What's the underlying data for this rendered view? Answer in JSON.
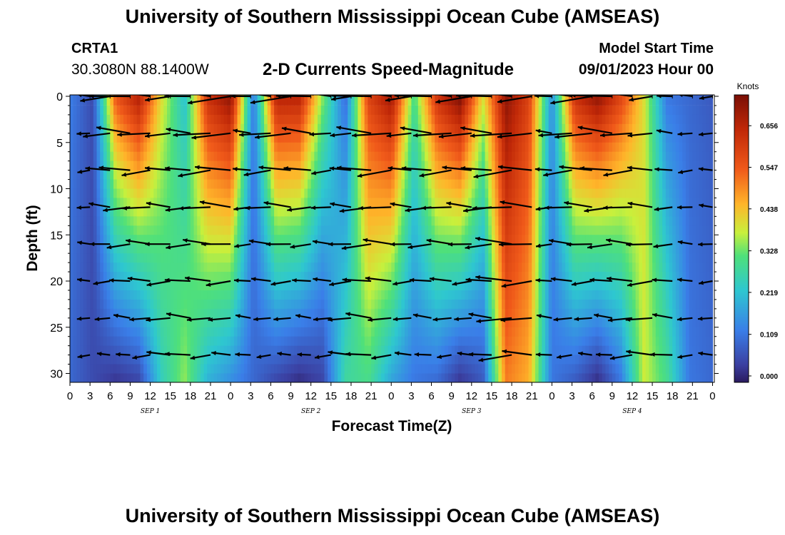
{
  "page": {
    "title_top": "University of Southern Mississippi Ocean Cube (AMSEAS)",
    "title_bottom": "University of Southern Mississippi Ocean Cube (AMSEAS)",
    "station": "CRTA1",
    "latlon": "30.3080N  88.1400W",
    "subtitle": "2-D Currents Speed-Magnitude",
    "model_start_label": "Model Start Time",
    "model_start_value": "09/01/2023 Hour 00"
  },
  "chart_data": {
    "type": "heatmap",
    "title": "2-D Currents Speed-Magnitude",
    "xlabel": "Forecast Time(Z)",
    "ylabel": "Depth (ft)",
    "x_range_hours": [
      0,
      96
    ],
    "ylim": [
      0,
      31
    ],
    "x_tick_labels": [
      "0",
      "3",
      "6",
      "9",
      "12",
      "15",
      "18",
      "21",
      "0",
      "3",
      "6",
      "9",
      "12",
      "15",
      "18",
      "21",
      "0",
      "3",
      "6",
      "9",
      "12",
      "15",
      "18",
      "21",
      "0",
      "3",
      "6",
      "9",
      "12",
      "15",
      "18",
      "21",
      "0"
    ],
    "day_labels": [
      "SEP 1",
      "SEP 2",
      "SEP 3",
      "SEP 4"
    ],
    "y_ticks": [
      0,
      5,
      10,
      15,
      20,
      25,
      30
    ],
    "colorbar": {
      "unit": "Knots",
      "ticks": [
        "0.656",
        "0.547",
        "0.438",
        "0.328",
        "0.219",
        "0.109",
        "0.000"
      ],
      "range": [
        0,
        0.72
      ]
    },
    "time_profile_surface": [
      0.13,
      0.06,
      0.55,
      0.66,
      0.4,
      0.22,
      0.62,
      0.7,
      0.12,
      0.65,
      0.65,
      0.35,
      0.1,
      0.58,
      0.68,
      0.3,
      0.62,
      0.72,
      0.4,
      0.7,
      0.58,
      0.15,
      0.62,
      0.7,
      0.58,
      0.4,
      0.12,
      0.1,
      0.08
    ],
    "time_profile_bottom": [
      0.1,
      0.06,
      0.03,
      0.05,
      0.25,
      0.35,
      0.2,
      0.15,
      0.1,
      0.05,
      0.02,
      0.05,
      0.28,
      0.3,
      0.18,
      0.12,
      0.1,
      0.03,
      0.08,
      0.5,
      0.45,
      0.12,
      0.08,
      0.02,
      0.12,
      0.38,
      0.3,
      0.12,
      0.1
    ],
    "arrow_depths_ft": [
      0,
      4,
      8,
      12,
      16,
      20,
      24,
      28
    ]
  }
}
